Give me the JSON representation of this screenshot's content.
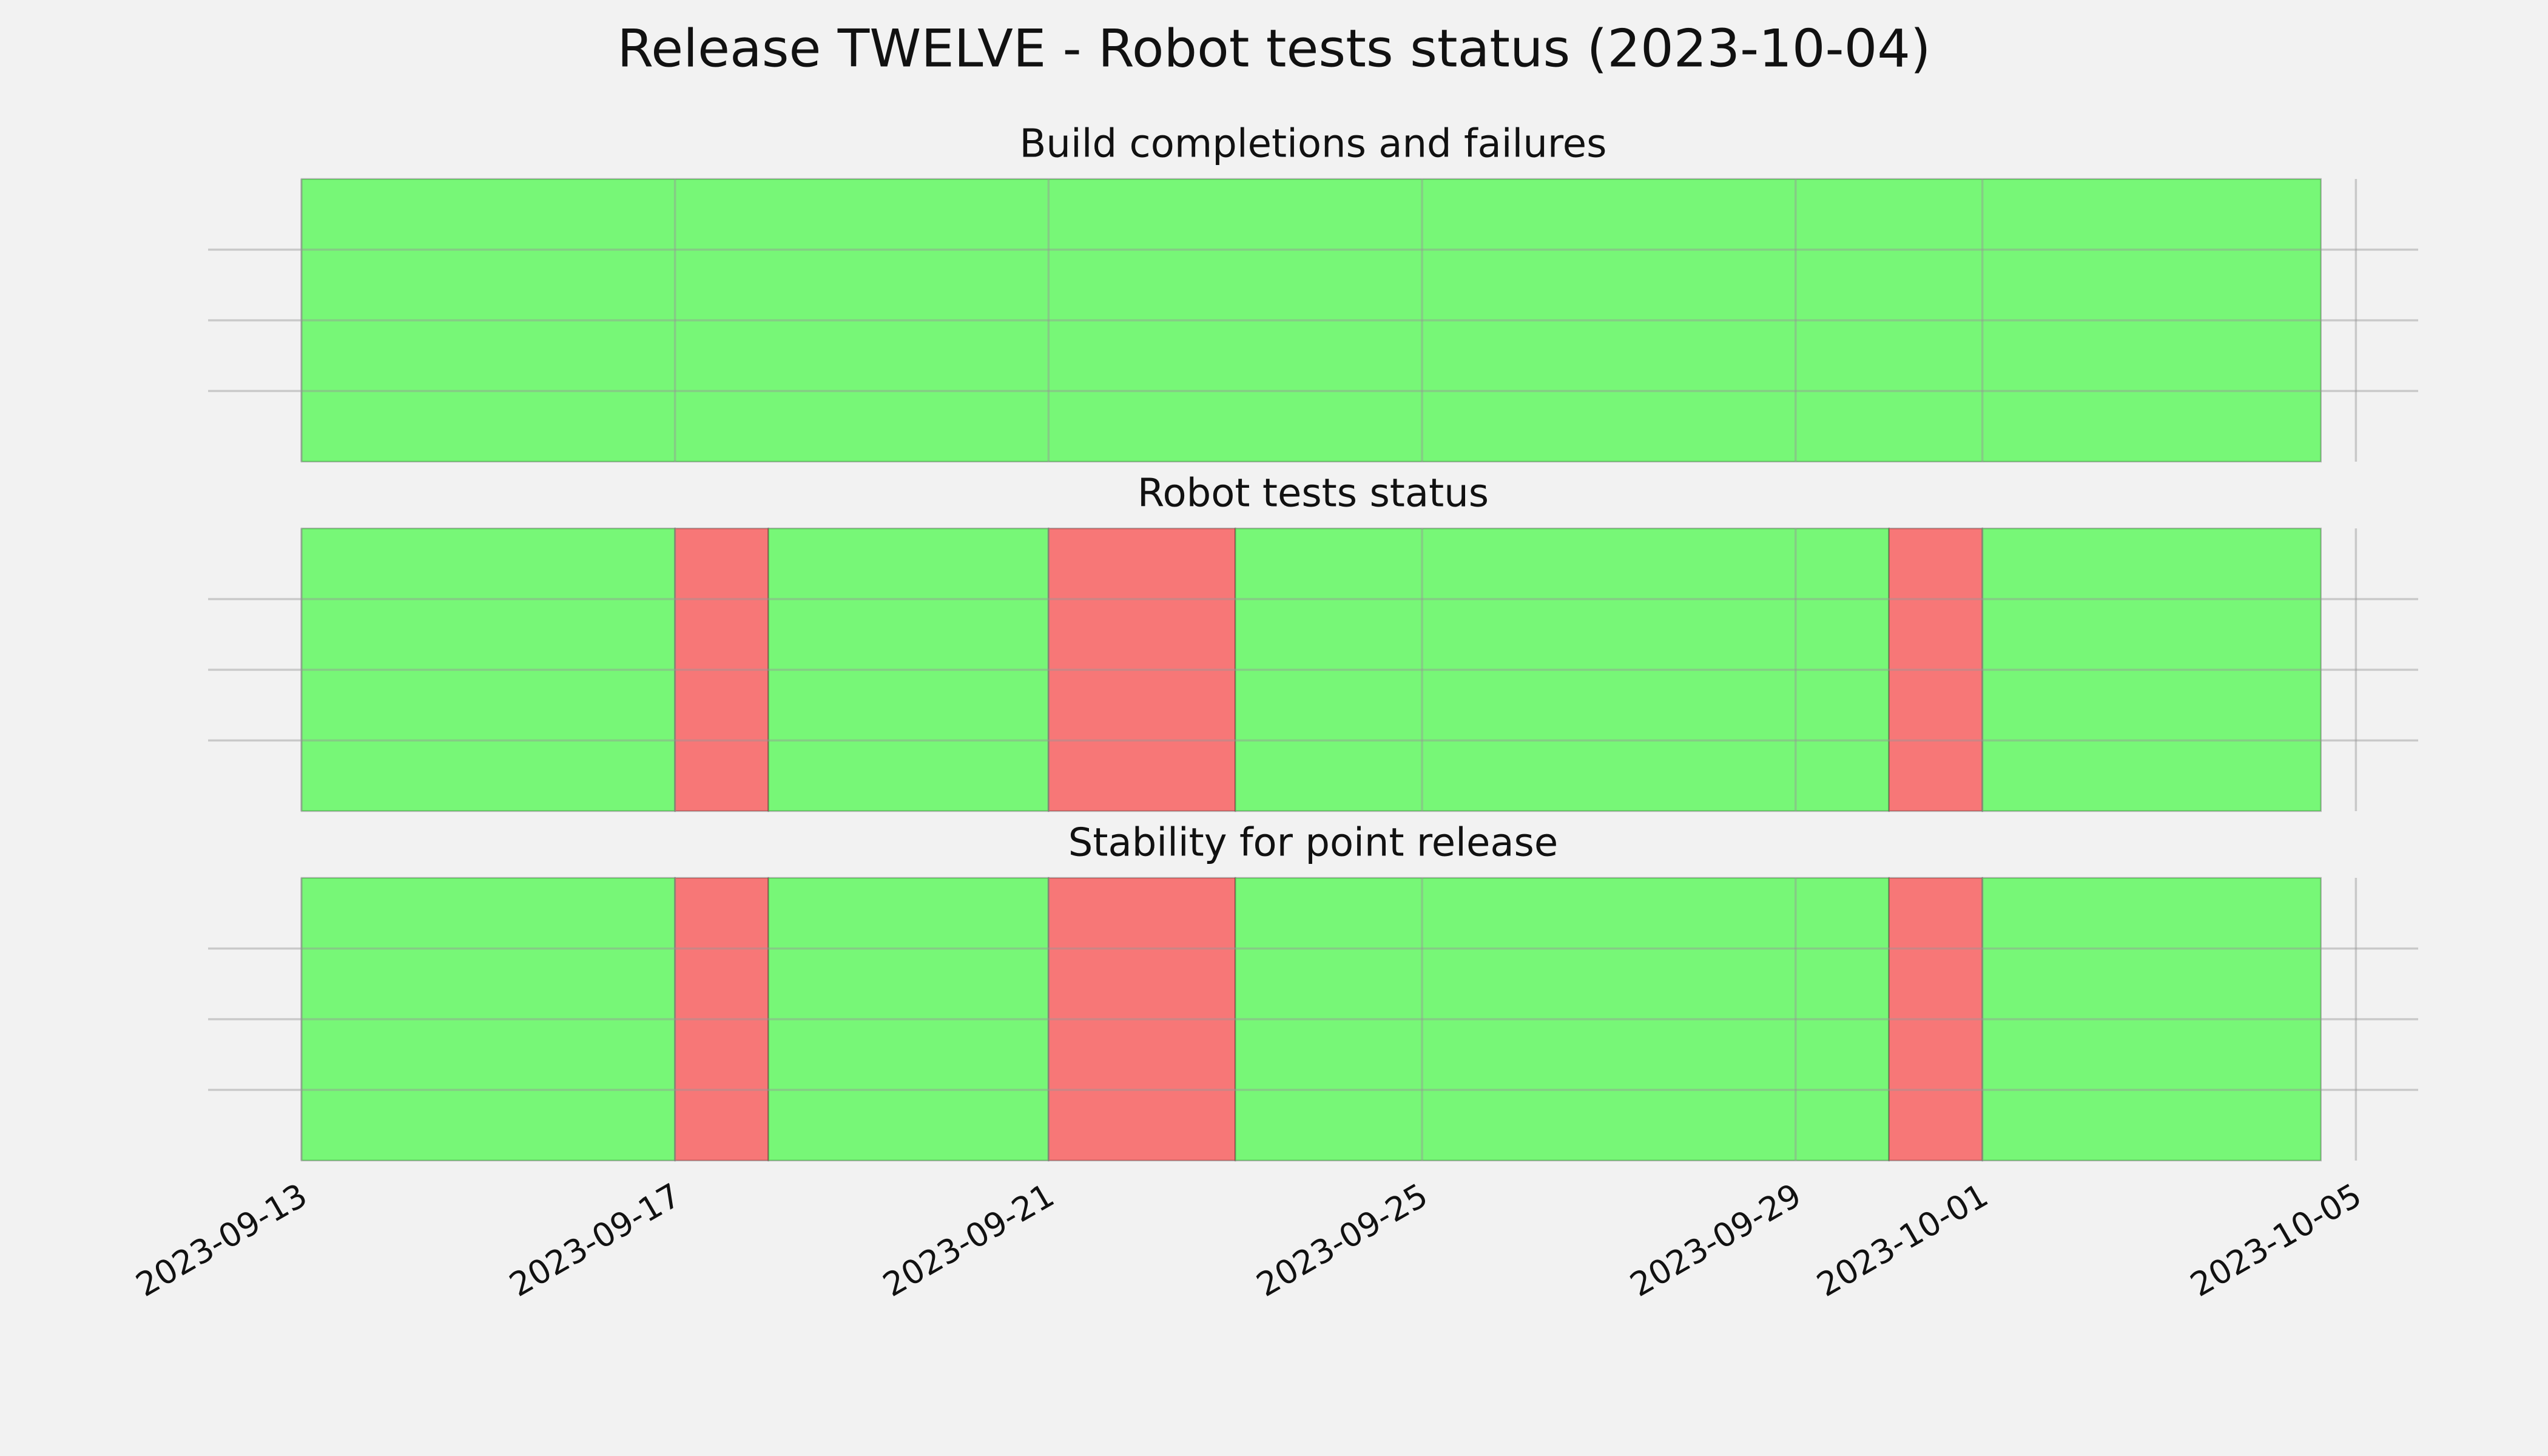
{
  "title": "Release TWELVE - Robot tests status (2023-10-04)",
  "xlim": [
    "2023-09-12T00:00:00Z",
    "2023-10-05T16:00:00Z"
  ],
  "xticks": [
    "2023-09-13",
    "2023-09-17",
    "2023-09-21",
    "2023-09-25",
    "2023-09-29",
    "2023-10-01",
    "2023-10-05"
  ],
  "chart_data": [
    {
      "type": "timeline",
      "title": "Build completions and failures",
      "ylim": [
        0,
        1
      ],
      "yticks": [
        0.25,
        0.5,
        0.75
      ],
      "grid": true,
      "ytick_labels": false,
      "spans": [
        {
          "start": "2023-09-13",
          "end": "2023-10-04T15:00:00Z",
          "color": "#77f777"
        }
      ]
    },
    {
      "type": "timeline",
      "title": "Robot tests status",
      "ylim": [
        0,
        1
      ],
      "yticks": [
        0.25,
        0.5,
        0.75
      ],
      "grid": true,
      "ytick_labels": false,
      "spans": [
        {
          "start": "2023-09-13",
          "end": "2023-09-17",
          "color": "#77f777"
        },
        {
          "start": "2023-09-17",
          "end": "2023-09-18",
          "color": "#f77777"
        },
        {
          "start": "2023-09-18",
          "end": "2023-09-21",
          "color": "#77f777"
        },
        {
          "start": "2023-09-21",
          "end": "2023-09-23",
          "color": "#f77777"
        },
        {
          "start": "2023-09-23",
          "end": "2023-09-30",
          "color": "#77f777"
        },
        {
          "start": "2023-09-30",
          "end": "2023-10-01",
          "color": "#f77777"
        },
        {
          "start": "2023-10-01",
          "end": "2023-10-04T15:00:00Z",
          "color": "#77f777"
        }
      ]
    },
    {
      "type": "timeline",
      "title": "Stability for point release",
      "ylim": [
        0,
        1
      ],
      "yticks": [
        0.25,
        0.5,
        0.75
      ],
      "grid": true,
      "ytick_labels": false,
      "spans": [
        {
          "start": "2023-09-13",
          "end": "2023-09-17",
          "color": "#77f777"
        },
        {
          "start": "2023-09-17",
          "end": "2023-09-18",
          "color": "#f77777"
        },
        {
          "start": "2023-09-18",
          "end": "2023-09-21",
          "color": "#77f777"
        },
        {
          "start": "2023-09-21",
          "end": "2023-09-23",
          "color": "#f77777"
        },
        {
          "start": "2023-09-23",
          "end": "2023-09-30",
          "color": "#77f777"
        },
        {
          "start": "2023-09-30",
          "end": "2023-10-01",
          "color": "#f77777"
        },
        {
          "start": "2023-10-01",
          "end": "2023-10-04T15:00:00Z",
          "color": "#77f777"
        }
      ]
    }
  ]
}
